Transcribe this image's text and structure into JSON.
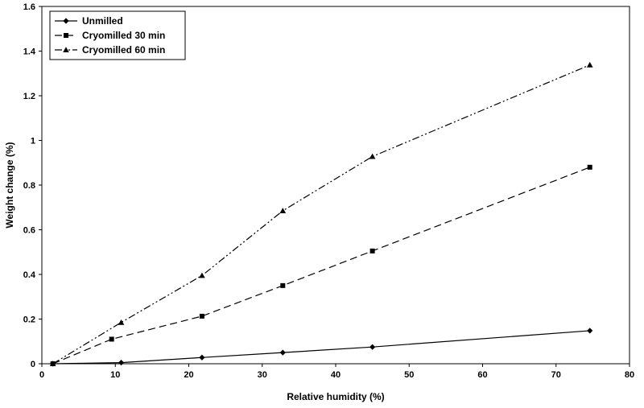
{
  "chart_data": {
    "type": "line",
    "xlabel": "Relative humidity (%)",
    "ylabel": "Weight change (%)",
    "xlim": [
      0,
      80
    ],
    "ylim": [
      0,
      1.6
    ],
    "xticks": [
      0,
      10,
      20,
      30,
      40,
      50,
      60,
      70,
      80
    ],
    "yticks": [
      0,
      0.2,
      0.4,
      0.6,
      0.8,
      1,
      1.2,
      1.4,
      1.6
    ],
    "grid": false,
    "legend_position": "top-left",
    "series": [
      {
        "name": "Unmilled",
        "marker": "diamond",
        "dash": "solid",
        "x": [
          1.5,
          10.8,
          21.8,
          32.8,
          45,
          74.6
        ],
        "y": [
          0,
          0.005,
          0.028,
          0.05,
          0.075,
          0.148
        ]
      },
      {
        "name": "Cryomilled 30 min",
        "marker": "square",
        "dash": "dashed",
        "x": [
          1.5,
          9.5,
          21.8,
          32.8,
          45,
          74.6
        ],
        "y": [
          0,
          0.11,
          0.213,
          0.35,
          0.505,
          0.88
        ]
      },
      {
        "name": "Cryomilled 60 min",
        "marker": "triangle",
        "dash": "dash-dot-dot",
        "x": [
          1.5,
          10.8,
          21.8,
          32.8,
          45,
          74.6
        ],
        "y": [
          0,
          0.185,
          0.395,
          0.685,
          0.928,
          1.338
        ]
      }
    ]
  }
}
